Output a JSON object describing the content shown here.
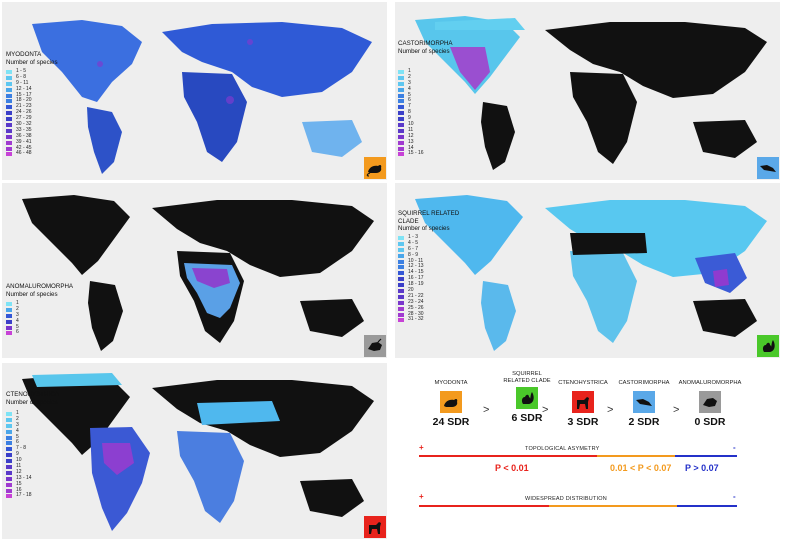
{
  "panels": {
    "myodonta": {
      "title": "MYODONTA",
      "subtitle": "Number of species",
      "legend": [
        "1 - 5",
        "6 - 8",
        "9 - 11",
        "12 - 14",
        "15 - 17",
        "18 - 20",
        "21 - 23",
        "24 - 26",
        "27 - 29",
        "30 - 32",
        "33 - 35",
        "36 - 38",
        "39 - 41",
        "42 - 45",
        "46 - 48"
      ],
      "badge_color": "#f39a1e",
      "icon": "rodent-icon"
    },
    "castorimorpha": {
      "title": "CASTORIMORPHA",
      "subtitle": "Number of species",
      "legend": [
        "1",
        "2",
        "3",
        "4",
        "5",
        "6",
        "7",
        "8",
        "9",
        "10",
        "11",
        "12",
        "13",
        "14",
        "15 - 16"
      ],
      "badge_color": "#5aa8e8",
      "icon": "beaver-icon"
    },
    "anomaluromorpha": {
      "title": "ANOMALUROMORPHA",
      "subtitle": "Number of species",
      "legend": [
        "1",
        "2",
        "3",
        "4",
        "5",
        "6"
      ],
      "badge_color": "#9a9a9a",
      "icon": "flying-squirrel-icon"
    },
    "squirrel": {
      "title": "SQUIRREL RELATED",
      "title2": "CLADE",
      "subtitle": "Number of species",
      "legend": [
        "1 - 3",
        "4 - 5",
        "6 - 7",
        "8 - 9",
        "10 - 11",
        "12 - 13",
        "14 - 15",
        "16 - 17",
        "18 - 19",
        "20",
        "21 - 22",
        "23 - 24",
        "25 - 26",
        "28 - 30",
        "31 - 32"
      ],
      "badge_color": "#4ac82a",
      "icon": "squirrel-icon"
    },
    "ctenohystrica": {
      "title": "CTENOHYSTRICA",
      "subtitle": "Number of species",
      "legend": [
        "1",
        "2",
        "3",
        "4",
        "5",
        "6",
        "7 - 8",
        "9",
        "10",
        "11",
        "12",
        "13 - 14",
        "15",
        "16",
        "17 - 18"
      ],
      "badge_color": "#e8231c",
      "icon": "guinea-pig-icon"
    }
  },
  "summary": {
    "clades": [
      {
        "name": "MYODONTA",
        "name2": "",
        "sdr": "24 SDR",
        "color": "#f39a1e"
      },
      {
        "name": "SQUIRREL",
        "name2": "RELATED CLADE",
        "sdr": "6 SDR",
        "color": "#4ac82a"
      },
      {
        "name": "CTENOHYSTRICA",
        "name2": "",
        "sdr": "3 SDR",
        "color": "#e8231c"
      },
      {
        "name": "CASTORIMORPHA",
        "name2": "",
        "sdr": "2 SDR",
        "color": "#5aa8e8"
      },
      {
        "name": "ANOMALUROMORPHA",
        "name2": "",
        "sdr": "0 SDR",
        "color": "#9a9a9a"
      }
    ],
    "gt": ">",
    "topology_label": "TOPOLOGICAL ASYMETRY",
    "distribution_label": "WIDESPREAD DISTRIBUTION",
    "plus": "+",
    "minus": "-",
    "p1": "P < 0.01",
    "p2": "0.01 < P < 0.07",
    "p3": "P > 0.07",
    "colors": {
      "red": "#e8231c",
      "orange": "#f39a1e",
      "blue": "#2431c9"
    }
  }
}
